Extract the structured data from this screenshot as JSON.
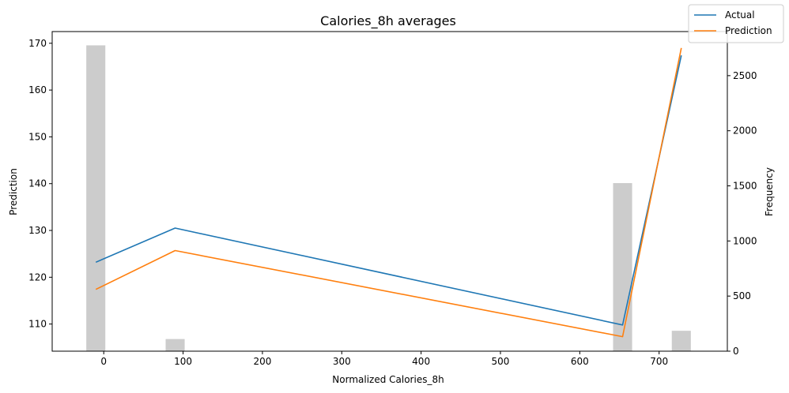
{
  "chart_data": {
    "type": "line",
    "title": "Calories_8h averages",
    "xlabel": "Normalized Calories_8h",
    "ylabel": "Prediction",
    "y2label": "Frequency",
    "xlim": [
      -65,
      786
    ],
    "ylim": [
      104.2,
      172.5
    ],
    "y2lim": [
      0,
      2900
    ],
    "xticks": [
      0,
      100,
      200,
      300,
      400,
      500,
      600,
      700
    ],
    "yticks": [
      110,
      120,
      130,
      140,
      150,
      160,
      170
    ],
    "y2ticks": [
      0,
      500,
      1000,
      1500,
      2000,
      2500
    ],
    "grid": false,
    "legend_position": "top-right",
    "series": [
      {
        "name": "Actual",
        "color": "#1f77b4",
        "x": [
          -10,
          90,
          654,
          728
        ],
        "y": [
          123.2,
          130.5,
          109.8,
          167.4
        ]
      },
      {
        "name": "Prediction",
        "color": "#ff7f0e",
        "x": [
          -10,
          90,
          654,
          728
        ],
        "y": [
          117.4,
          125.7,
          107.3,
          169.0
        ]
      }
    ],
    "histogram": {
      "color": "#cccccc",
      "centers": [
        -10,
        90,
        654,
        728
      ],
      "width": 24,
      "frequencies": [
        2775,
        110,
        1525,
        185
      ]
    }
  }
}
